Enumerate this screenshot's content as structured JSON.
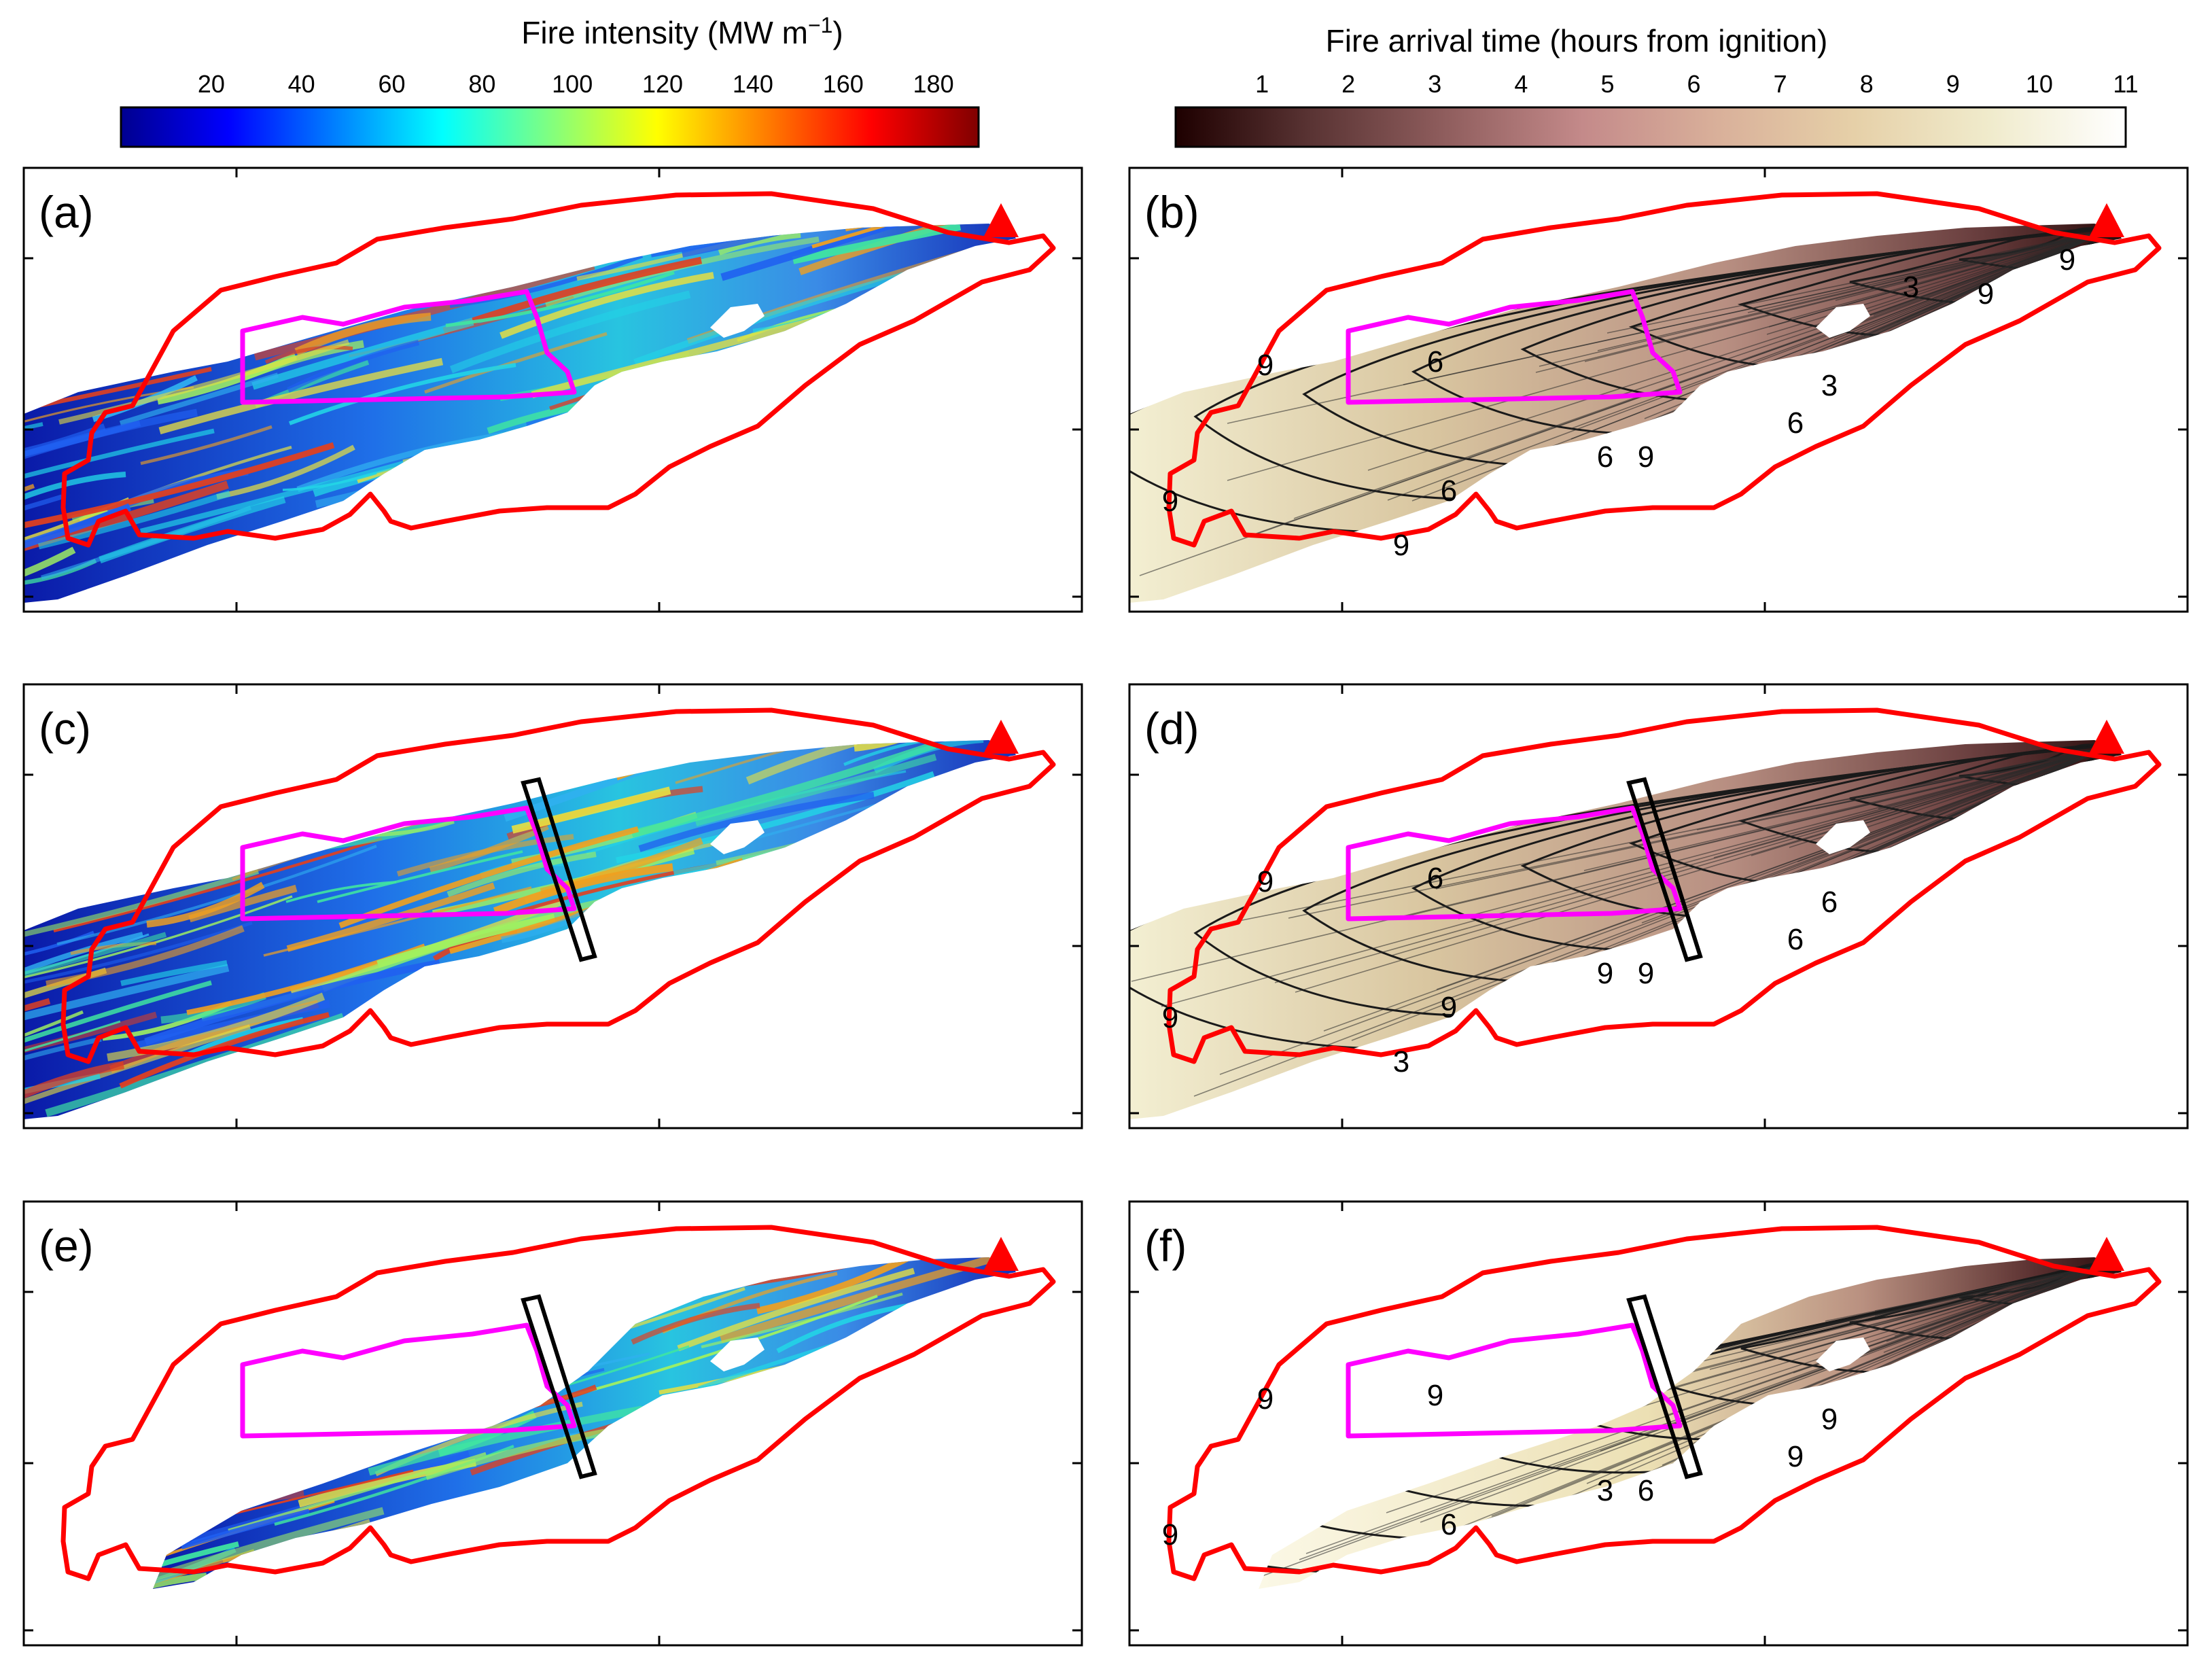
{
  "chart_data": {
    "type": "heatmap",
    "colorbars": [
      {
        "name": "intensity",
        "title_main": "Fire intensity (MW m",
        "title_sup": "−1",
        "title_end": ")",
        "range": [
          0,
          190
        ],
        "ticks": [
          "20",
          "40",
          "60",
          "80",
          "100",
          "120",
          "140",
          "160",
          "180"
        ],
        "tick_values": [
          20,
          40,
          60,
          80,
          100,
          120,
          140,
          160,
          180
        ],
        "colormap": "jet",
        "stops": [
          "#00008f",
          "#0000ff",
          "#0080ff",
          "#00ffff",
          "#80ff80",
          "#ffff00",
          "#ff8000",
          "#ff0000",
          "#800000"
        ]
      },
      {
        "name": "arrival",
        "title": "Fire arrival time (hours from ignition)",
        "range": [
          0,
          11
        ],
        "ticks": [
          "1",
          "2",
          "3",
          "4",
          "5",
          "6",
          "7",
          "8",
          "9",
          "10",
          "11"
        ],
        "tick_values": [
          1,
          2,
          3,
          4,
          5,
          6,
          7,
          8,
          9,
          10,
          11
        ],
        "colormap": "pink",
        "stops": [
          "#1e0000",
          "#5a3434",
          "#905e5e",
          "#c48a8a",
          "#d9b09a",
          "#e6d0a8",
          "#f0ebcc",
          "#ffffff"
        ]
      }
    ],
    "panels": [
      {
        "label": "(a)",
        "variable": "Fire intensity",
        "break_line": false,
        "reduced_burn": false
      },
      {
        "label": "(b)",
        "variable": "Fire arrival time",
        "break_line": false,
        "reduced_burn": false,
        "contour_labels": [
          "9",
          "9",
          "3",
          "6",
          "6",
          "6",
          "6",
          "9",
          "9",
          "9",
          "9",
          "3"
        ]
      },
      {
        "label": "(c)",
        "variable": "Fire intensity",
        "break_line": true,
        "reduced_burn": false
      },
      {
        "label": "(d)",
        "variable": "Fire arrival time",
        "break_line": true,
        "reduced_burn": false,
        "contour_labels": [
          "9",
          "9",
          "6",
          "6",
          "9",
          "9",
          "6",
          "9",
          "3"
        ]
      },
      {
        "label": "(e)",
        "variable": "Fire intensity",
        "break_line": true,
        "reduced_burn": true
      },
      {
        "label": "(f)",
        "variable": "Fire arrival time",
        "break_line": true,
        "reduced_burn": true,
        "contour_labels": [
          "9",
          "9",
          "9",
          "9",
          "3",
          "6",
          "9",
          "6"
        ]
      }
    ],
    "colors": {
      "observed_perimeter": "#ff0000",
      "protected_area": "#ff00ff",
      "ignition_marker": "#ff0000",
      "firebreak": "#000000"
    },
    "axes": {
      "tick_labels_shown": false
    }
  }
}
